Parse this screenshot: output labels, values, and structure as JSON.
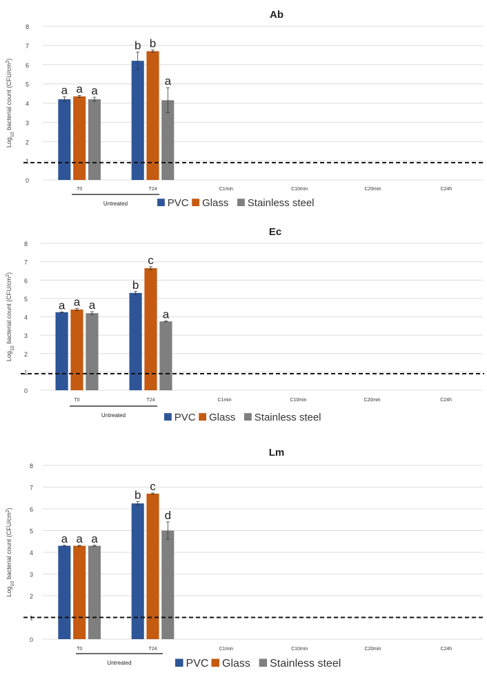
{
  "chart_data": [
    {
      "type": "bar",
      "title": "Ab",
      "ylabel_prefix": "Log",
      "ylabel_sub": "10",
      "ylabel_main": " bacterial count (CFU/cm",
      "ylabel_sup": "2",
      "ylabel_end": ")",
      "ylim": [
        0,
        8
      ],
      "yticks": [
        "0",
        "1",
        "2",
        "3",
        "4",
        "5",
        "6",
        "7",
        "8"
      ],
      "categories": [
        "T0",
        "T24",
        "C1min",
        "C10min",
        "C20min",
        "C24h"
      ],
      "group_label": "Untreated",
      "detection_limit": 0.9,
      "series": [
        {
          "name": "PVC",
          "color": "#2e5597",
          "values": [
            4.2,
            6.2,
            null,
            null,
            null,
            null
          ],
          "errors": [
            0.12,
            0.45,
            null,
            null,
            null,
            null
          ],
          "letters": [
            "a",
            "b",
            "",
            "",
            "",
            ""
          ]
        },
        {
          "name": "Glass",
          "color": "#c55a11",
          "values": [
            4.35,
            6.7,
            null,
            null,
            null,
            null
          ],
          "errors": [
            0.05,
            0.06,
            null,
            null,
            null,
            null
          ],
          "letters": [
            "a",
            "b",
            "",
            "",
            "",
            ""
          ]
        },
        {
          "name": "Stainless steel",
          "color": "#7f7f7f",
          "values": [
            4.2,
            4.15,
            null,
            null,
            null,
            null
          ],
          "errors": [
            0.1,
            0.65,
            null,
            null,
            null,
            null
          ],
          "letters": [
            "a",
            "a",
            "",
            "",
            "",
            ""
          ]
        }
      ]
    },
    {
      "type": "bar",
      "title": "Ec",
      "ylabel_prefix": "Log",
      "ylabel_sub": "10",
      "ylabel_main": " bacterial count (CFU/cm",
      "ylabel_sup": "2",
      "ylabel_end": ")",
      "ylim": [
        0,
        8
      ],
      "yticks": [
        "0",
        "1",
        "2",
        "3",
        "4",
        "5",
        "6",
        "7",
        "8"
      ],
      "categories": [
        "T0",
        "T24",
        "C1min",
        "C10min",
        "C20min",
        "C24h"
      ],
      "group_label": "Untreated",
      "detection_limit": 0.9,
      "series": [
        {
          "name": "PVC",
          "color": "#2e5597",
          "values": [
            4.25,
            5.3,
            null,
            null,
            null,
            null
          ],
          "errors": [
            0.02,
            0.08,
            null,
            null,
            null,
            null
          ],
          "letters": [
            "a",
            "b",
            "",
            "",
            "",
            ""
          ]
        },
        {
          "name": "Glass",
          "color": "#c55a11",
          "values": [
            4.4,
            6.65,
            null,
            null,
            null,
            null
          ],
          "errors": [
            0.06,
            0.08,
            null,
            null,
            null,
            null
          ],
          "letters": [
            "a",
            "c",
            "",
            "",
            "",
            ""
          ]
        },
        {
          "name": "Stainless steel",
          "color": "#7f7f7f",
          "values": [
            4.2,
            3.75,
            null,
            null,
            null,
            null
          ],
          "errors": [
            0.08,
            0.02,
            null,
            null,
            null,
            null
          ],
          "letters": [
            "a",
            "a",
            "",
            "",
            "",
            ""
          ]
        }
      ]
    },
    {
      "type": "bar",
      "title": "Lm",
      "ylabel_prefix": "Log",
      "ylabel_sub": "10",
      "ylabel_main": " bacterial count (CFU/cm",
      "ylabel_sup": "2",
      "ylabel_end": ")",
      "ylim": [
        0,
        8
      ],
      "yticks": [
        "0",
        "1",
        "2",
        "3",
        "4",
        "5",
        "6",
        "7",
        "8"
      ],
      "categories": [
        "T0",
        "T24",
        "C1min",
        "C10min",
        "C20min",
        "C24h"
      ],
      "group_label": "Untreated",
      "detection_limit": 1.0,
      "series": [
        {
          "name": "PVC",
          "color": "#2e5597",
          "values": [
            4.3,
            6.25,
            null,
            null,
            null,
            null
          ],
          "errors": [
            0.02,
            0.08,
            null,
            null,
            null,
            null
          ],
          "letters": [
            "a",
            "b",
            "",
            "",
            "",
            ""
          ]
        },
        {
          "name": "Glass",
          "color": "#c55a11",
          "values": [
            4.3,
            6.7,
            null,
            null,
            null,
            null
          ],
          "errors": [
            0.02,
            0.03,
            null,
            null,
            null,
            null
          ],
          "letters": [
            "a",
            "c",
            "",
            "",
            "",
            ""
          ]
        },
        {
          "name": "Stainless steel",
          "color": "#7f7f7f",
          "values": [
            4.3,
            5.0,
            null,
            null,
            null,
            null
          ],
          "errors": [
            0.02,
            0.4,
            null,
            null,
            null,
            null
          ],
          "letters": [
            "a",
            "d",
            "",
            "",
            "",
            ""
          ]
        }
      ]
    }
  ]
}
